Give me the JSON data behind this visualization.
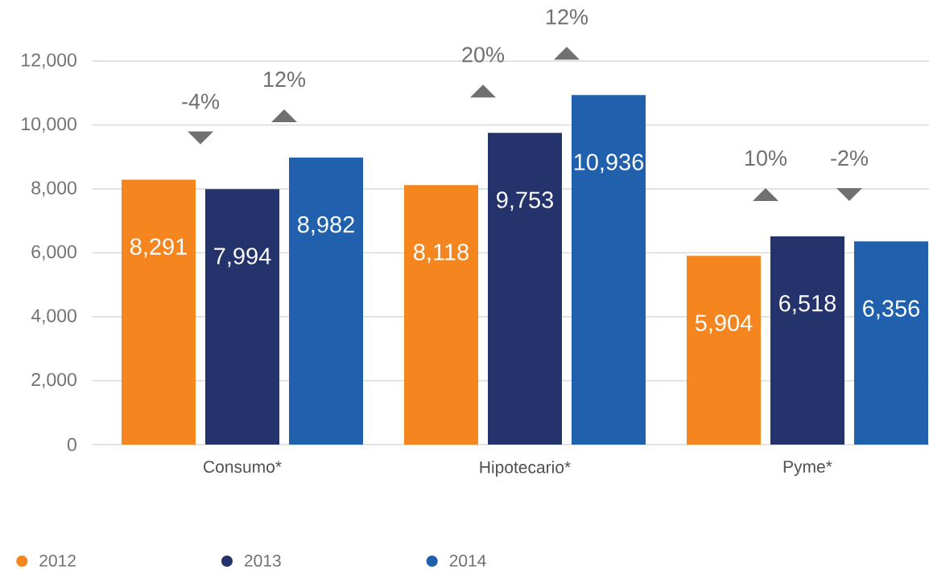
{
  "chart_data": {
    "type": "bar",
    "categories": [
      "Consumo*",
      "Hipotecario*",
      "Pyme*"
    ],
    "series": [
      {
        "name": "2012",
        "color": "#f5851f",
        "values": [
          8291,
          8118,
          5904
        ],
        "value_labels": [
          "8,291",
          "8,118",
          "5,904"
        ]
      },
      {
        "name": "2013",
        "color": "#25336d",
        "values": [
          7994,
          9753,
          6518
        ],
        "value_labels": [
          "7,994",
          "9,753",
          "6,518"
        ]
      },
      {
        "name": "2014",
        "color": "#2060ad",
        "values": [
          8982,
          10936,
          6356
        ],
        "value_labels": [
          "8,982",
          "10,936",
          "6,356"
        ]
      }
    ],
    "ylim": [
      0,
      12000
    ],
    "yticks": [
      0,
      {
        "value": 2000,
        "label": "2,000"
      },
      {
        "value": 4000,
        "label": "4,000"
      },
      {
        "value": 6000,
        "label": "6,000"
      },
      {
        "value": 8000,
        "label": "8,000"
      },
      {
        "value": 10000,
        "label": "10,000"
      },
      {
        "value": 12000,
        "label": "12,000"
      }
    ],
    "grid": "y",
    "legend": "bottom left",
    "annotations": [
      "-4%",
      "12%",
      "20%",
      "12%",
      "10%",
      "-2%"
    ]
  }
}
